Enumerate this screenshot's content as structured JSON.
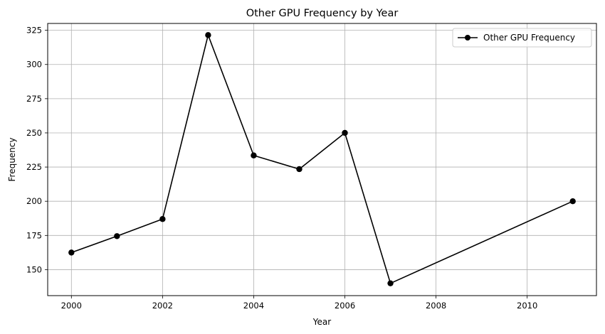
{
  "chart_data": {
    "type": "line",
    "title": "Other GPU Frequency by Year",
    "xlabel": "Year",
    "ylabel": "Frequency",
    "xlim": [
      1999.48,
      2011.52
    ],
    "ylim": [
      131,
      330
    ],
    "xticks": [
      2000,
      2002,
      2004,
      2006,
      2008,
      2010
    ],
    "yticks": [
      150,
      175,
      200,
      225,
      250,
      275,
      300,
      325
    ],
    "grid": true,
    "legend_position": "top-right",
    "series": [
      {
        "name": "Other GPU Frequency",
        "color": "#000000",
        "marker": "circle",
        "x": [
          2000,
          2001,
          2002,
          2003,
          2004,
          2005,
          2006,
          2007,
          2011
        ],
        "y": [
          162.5,
          174.5,
          187,
          321.5,
          233.5,
          223.5,
          250,
          140,
          200
        ]
      }
    ]
  }
}
